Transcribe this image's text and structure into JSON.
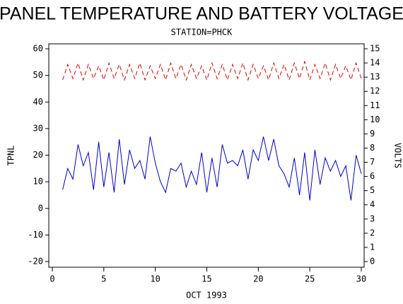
{
  "chart_data": {
    "type": "line",
    "title": "PANEL TEMPERATURE AND BATTERY VOLTAGE",
    "subtitle": "STATION=PHCK",
    "x_label": "OCT 1993",
    "y_label": "TPNL",
    "y2_label": "VOLTS",
    "x": [
      1,
      1.5,
      2,
      2.5,
      3,
      3.5,
      4,
      4.5,
      5,
      5.5,
      6,
      6.5,
      7,
      7.5,
      8,
      8.5,
      9,
      9.5,
      10,
      10.5,
      11,
      11.5,
      12,
      12.5,
      13,
      13.5,
      14,
      14.5,
      15,
      15.5,
      16,
      16.5,
      17,
      17.5,
      18,
      18.5,
      19,
      19.5,
      20,
      20.5,
      21,
      21.5,
      22,
      22.5,
      23,
      23.5,
      24,
      24.5,
      25,
      25.5,
      26,
      26.5,
      27,
      27.5,
      28,
      28.5,
      29,
      29.5,
      30
    ],
    "series": [
      {
        "name": "TPNL",
        "color": "#0000cc",
        "axis": "y",
        "values": [
          7,
          15,
          11,
          24,
          16,
          21,
          7,
          25,
          8,
          21,
          6,
          26,
          9,
          22,
          15,
          18,
          11,
          27,
          17,
          10,
          6,
          15,
          14,
          17,
          8,
          14,
          9,
          21,
          6,
          19,
          8,
          24,
          17,
          18,
          16,
          22,
          11,
          22,
          18,
          27,
          18,
          26,
          16,
          13,
          8,
          19,
          5,
          21,
          3,
          22,
          9,
          19,
          14,
          18,
          12,
          16,
          3,
          20,
          13
        ]
      },
      {
        "name": "VOLTS",
        "color": "#dd0000",
        "axis": "y2",
        "values": [
          12.8,
          13.9,
          12.9,
          14.0,
          12.8,
          13.9,
          12.9,
          13.8,
          12.8,
          14.0,
          12.9,
          13.9,
          12.8,
          13.9,
          12.9,
          14.0,
          12.8,
          13.8,
          12.9,
          13.9,
          12.8,
          14.0,
          12.9,
          13.9,
          12.8,
          13.9,
          12.9,
          13.8,
          12.8,
          14.0,
          12.9,
          13.9,
          12.8,
          13.9,
          12.9,
          14.0,
          12.8,
          13.9,
          12.9,
          13.8,
          12.8,
          14.0,
          12.9,
          13.9,
          12.8,
          14.0,
          12.9,
          14.1,
          12.8,
          13.9,
          12.9,
          14.0,
          12.8,
          13.9,
          12.9,
          13.8,
          12.8,
          14.0,
          12.9
        ]
      }
    ],
    "xlim": [
      0,
      30
    ],
    "xticks": [
      0,
      5,
      10,
      15,
      20,
      25,
      30
    ],
    "ylim": [
      -20,
      60
    ],
    "yticks": [
      -20,
      -10,
      0,
      10,
      20,
      30,
      40,
      50,
      60
    ],
    "y2lim": [
      0,
      15
    ],
    "y2ticks": [
      0,
      1,
      2,
      3,
      4,
      5,
      6,
      7,
      8,
      9,
      10,
      11,
      12,
      13,
      14,
      15
    ]
  }
}
